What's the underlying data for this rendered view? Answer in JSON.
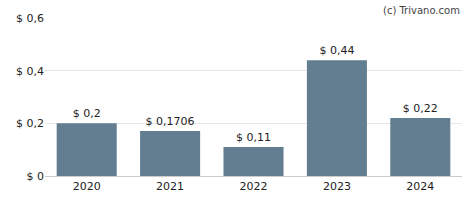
{
  "chart_data": {
    "type": "bar",
    "categories": [
      "2020",
      "2021",
      "2022",
      "2023",
      "2024"
    ],
    "values": [
      0.2,
      0.1706,
      0.11,
      0.44,
      0.22
    ],
    "value_labels": [
      "$ 0,2",
      "$ 0,1706",
      "$ 0,11",
      "$ 0,44",
      "$ 0,22"
    ],
    "data_labels": true,
    "color": "#637d91",
    "ylim": [
      0,
      0.6
    ],
    "yticks": [
      {
        "value": 0,
        "label": "$ 0"
      },
      {
        "value": 0.2,
        "label": "$ 0,2"
      },
      {
        "value": 0.4,
        "label": "$ 0,4"
      },
      {
        "value": 0.6,
        "label": "$ 0,6"
      }
    ],
    "grid": true,
    "annotations": [
      "(c) Trivano.com"
    ]
  }
}
